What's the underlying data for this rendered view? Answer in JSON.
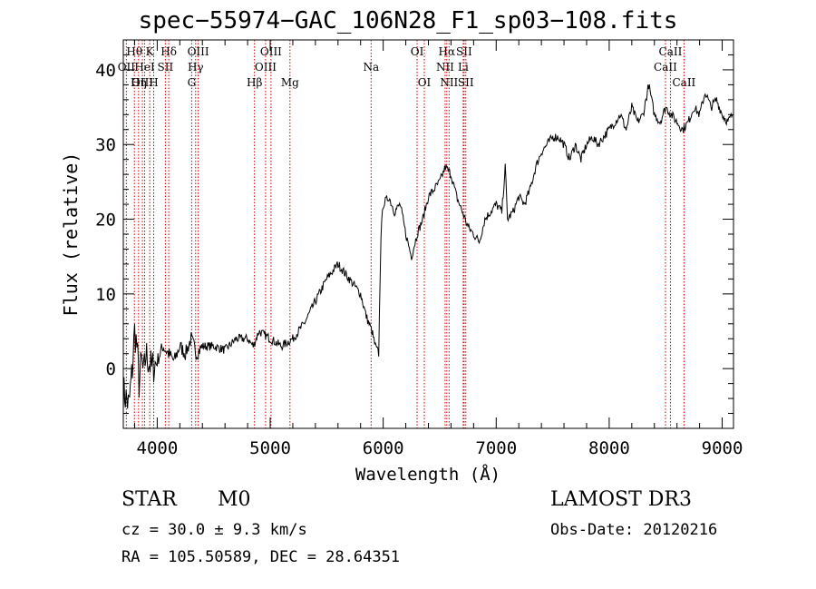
{
  "chart_data": {
    "type": "line",
    "title": "spec−55974−GAC_106N28_F1_sp03−108.fits",
    "xlabel": "Wavelength (Å)",
    "ylabel": "Flux (relative)",
    "xlim": [
      3700,
      9100
    ],
    "ylim": [
      -8,
      44
    ],
    "xticks": [
      4000,
      5000,
      6000,
      7000,
      8000,
      9000
    ],
    "yticks": [
      0,
      10,
      20,
      30,
      40
    ],
    "grid": false,
    "series": [
      {
        "x": [
          3700,
          3750,
          3780,
          3800,
          3820,
          3840,
          3860,
          3880,
          3900,
          3950,
          4000,
          4050,
          4100,
          4150,
          4200,
          4250,
          4300,
          4350,
          4400,
          4500,
          4600,
          4700,
          4800,
          4850,
          4900,
          5000,
          5100,
          5200,
          5300,
          5400,
          5500,
          5550,
          5600,
          5650,
          5700,
          5750,
          5800,
          5850,
          5900,
          5930,
          5960,
          5980,
          6000,
          6050,
          6100,
          6150,
          6200,
          6250,
          6300,
          6350,
          6400,
          6450,
          6500,
          6550,
          6600,
          6650,
          6700,
          6750,
          6800,
          6850,
          6900,
          6950,
          7000,
          7050,
          7080,
          7100,
          7150,
          7200,
          7250,
          7300,
          7350,
          7400,
          7450,
          7500,
          7550,
          7600,
          7650,
          7700,
          7750,
          7800,
          7850,
          7900,
          7950,
          8000,
          8050,
          8100,
          8150,
          8200,
          8250,
          8300,
          8350,
          8400,
          8450,
          8500,
          8550,
          8600,
          8650,
          8700,
          8750,
          8800,
          8850,
          8900,
          8950,
          9000,
          9050,
          9090
        ],
        "y": [
          -3,
          -5,
          0,
          5,
          3,
          -2,
          1,
          -1,
          2,
          0,
          1,
          3,
          2,
          1,
          3,
          2,
          4,
          2,
          3,
          3,
          2.5,
          4,
          4,
          3,
          5,
          4,
          3,
          4,
          6,
          9,
          12,
          13,
          14,
          13,
          12,
          11,
          10,
          7,
          5,
          3,
          2,
          18,
          22,
          23,
          21,
          22,
          18,
          15,
          18,
          20,
          23,
          24,
          25,
          27,
          26,
          23,
          21,
          19,
          18,
          17,
          20,
          21,
          22,
          21,
          27,
          20,
          21,
          23,
          22,
          24,
          27,
          29,
          30,
          31,
          31,
          30,
          28,
          30,
          28,
          30,
          31,
          30,
          31,
          32,
          33,
          34,
          32,
          35,
          33,
          34,
          38,
          34,
          33,
          35,
          34,
          33,
          32,
          33,
          35,
          34,
          37,
          35,
          36,
          34,
          33,
          34
        ]
      }
    ],
    "lines": [
      {
        "label": "Hθ",
        "x": 3798,
        "row": 1
      },
      {
        "label": "OII",
        "x": 3727,
        "row": 2
      },
      {
        "label": "OIII",
        "x": 3869,
        "row": 3
      },
      {
        "label": "Hη",
        "x": 3835,
        "row": 3
      },
      {
        "label": "HeI",
        "x": 3889,
        "row": 2
      },
      {
        "label": "K",
        "x": 3934,
        "row": 1
      },
      {
        "label": "SII",
        "x": 4072,
        "row": 2
      },
      {
        "label": "Hδ",
        "x": 4102,
        "row": 1
      },
      {
        "label": "H",
        "x": 3969,
        "row": 3
      },
      {
        "label": "OIII",
        "x": 4363,
        "row": 1
      },
      {
        "label": "Hγ",
        "x": 4340,
        "row": 2
      },
      {
        "label": "G",
        "x": 4305,
        "row": 3
      },
      {
        "label": "Hβ",
        "x": 4861,
        "row": 3
      },
      {
        "label": "OIII",
        "x": 5007,
        "row": 1
      },
      {
        "label": "OIII",
        "x": 4959,
        "row": 2
      },
      {
        "label": "Mg",
        "x": 5175,
        "row": 3
      },
      {
        "label": "Na",
        "x": 5893,
        "row": 2
      },
      {
        "label": "OI",
        "x": 6300,
        "row": 1
      },
      {
        "label": "OI",
        "x": 6364,
        "row": 3
      },
      {
        "label": "Hα",
        "x": 6563,
        "row": 1
      },
      {
        "label": "NII",
        "x": 6548,
        "row": 2
      },
      {
        "label": "NII",
        "x": 6583,
        "row": 3
      },
      {
        "label": "SII",
        "x": 6716,
        "row": 1
      },
      {
        "label": "Li",
        "x": 6708,
        "row": 2
      },
      {
        "label": "SII",
        "x": 6731,
        "row": 3
      },
      {
        "label": "CaII",
        "x": 8542,
        "row": 1
      },
      {
        "label": "CaII",
        "x": 8498,
        "row": 2
      },
      {
        "label": "CaII",
        "x": 8662,
        "row": 3
      }
    ],
    "colors": {
      "axes": "#000000",
      "line": "#000000",
      "marker": "#cc0000"
    }
  },
  "info": {
    "class": "STAR",
    "subclass": "M0",
    "survey": "LAMOST DR3",
    "cz": "cz = 30.0 ± 9.3 km/s",
    "obs_date": "Obs-Date: 20120216",
    "radec": "RA = 105.50589, DEC =  28.64351"
  }
}
